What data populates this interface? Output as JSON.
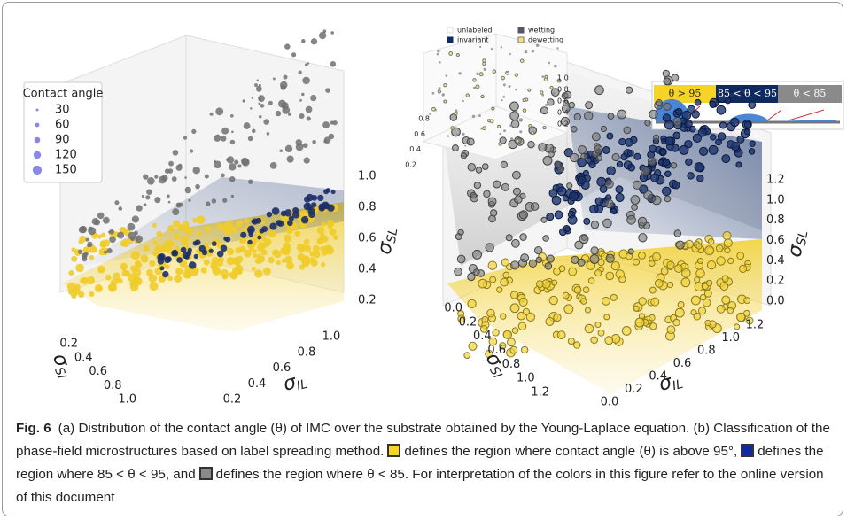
{
  "panel_a": {
    "legend": {
      "title": "Contact angle",
      "entries": [
        "30",
        "60",
        "90",
        "120",
        "150"
      ]
    },
    "z_label": {
      "symbol": "σ",
      "sub": "SL"
    },
    "x_label": {
      "symbol": "σ",
      "sub": "SI"
    },
    "y_label": {
      "symbol": "σ",
      "sub": "IL"
    },
    "z_ticks": [
      "0.2",
      "0.4",
      "0.6",
      "0.8",
      "1.0"
    ],
    "x_ticks": [
      "0.2",
      "0.4",
      "0.6",
      "0.8",
      "1.0"
    ],
    "y_ticks": [
      "0.2",
      "0.4",
      "0.6",
      "0.8",
      "1.0"
    ]
  },
  "panel_b": {
    "inset_legend": [
      "unlabeled",
      "invariant",
      "wetting",
      "dewetting"
    ],
    "inset_left_ticks": [
      "0.2",
      "0.4",
      "0.6",
      "0.8"
    ],
    "inset_right_ticks": [
      "1.0",
      "0.8",
      "0.6",
      "0.4",
      "0.2"
    ],
    "color_key": [
      "θ > 95",
      "85 < θ < 95",
      "θ < 85"
    ],
    "z_label": {
      "symbol": "σ",
      "sub": "SL"
    },
    "x_label": {
      "symbol": "σ",
      "sub": "SI"
    },
    "y_label": {
      "symbol": "σ",
      "sub": "IL"
    },
    "z_ticks": [
      "0.0",
      "0.2",
      "0.4",
      "0.6",
      "0.8",
      "1.0",
      "1.2"
    ],
    "x_ticks": [
      "0.0",
      "0.2",
      "0.4",
      "0.6",
      "0.8",
      "1.0",
      "1.2"
    ],
    "y_ticks": [
      "0.0",
      "0.2",
      "0.4",
      "0.6",
      "0.8",
      "1.0",
      "1.2"
    ]
  },
  "caption": {
    "label": "Fig. 6",
    "segments": [
      "(a) Distribution of the contact angle (θ) of IMC over the substrate obtained by the Young-Laplace equation. (b) Classification of the phase-field microstructures based on label spreading method.",
      "defines the region where contact angle (θ) is above 95°,",
      "defines the region where 85 < θ < 95, and",
      "defines the region where θ < 85. For interpretation of the colors in this figure refer to the online version of this document"
    ]
  }
}
